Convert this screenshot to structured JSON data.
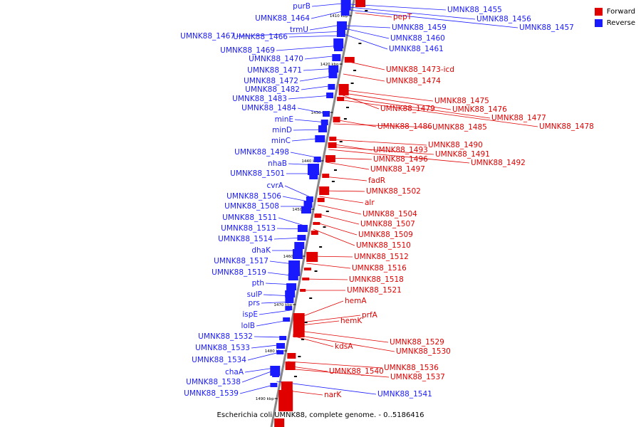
{
  "colors": {
    "forward": "#e00000",
    "reverse": "#1a1aff",
    "axis": "#888888"
  },
  "legend": [
    {
      "label": "Forward",
      "color": "#e00000"
    },
    {
      "label": "Reverse",
      "color": "#1a1aff"
    }
  ],
  "caption": "Escherichia coli UMNK88, complete genome. - 0..5186416",
  "ticks": [
    "1410 kbp",
    "1420 kbp",
    "1430 kbp",
    "1440 kbp",
    "1450 kbp",
    "1460 kbp",
    "1470 kbp",
    "1480 kbp",
    "1490 kbp"
  ],
  "reverse_genes": [
    "purB",
    "UMNK88_1464",
    "trmU",
    "UMNK88_1467",
    "UMNK88_1466",
    "UMNK88_1469",
    "UMNK88_1470",
    "UMNK88_1471",
    "UMNK88_1472",
    "UMNK88_1482",
    "UMNK88_1483",
    "UMNK88_1484",
    "minE",
    "minD",
    "minC",
    "UMNK88_1498",
    "nhaB",
    "UMNK88_1501",
    "cvrA",
    "UMNK88_1506",
    "UMNK88_1508",
    "UMNK88_1511",
    "UMNK88_1513",
    "UMNK88_1514",
    "dhaK",
    "UMNK88_1517",
    "UMNK88_1519",
    "pth",
    "sulP",
    "prs",
    "ispE",
    "lolB",
    "UMNK88_1532",
    "UMNK88_1533",
    "UMNK88_1534",
    "chaA",
    "UMNK88_1538",
    "UMNK88_1539",
    "UMNK88_1455",
    "UMNK88_1456",
    "UMNK88_1457",
    "UMNK88_1459",
    "UMNK88_1460",
    "UMNK88_1461",
    "UMNK88_1541"
  ],
  "forward_genes": [
    "pepT",
    "UMNK88_1473-icd",
    "UMNK88_1474",
    "UMNK88_1475",
    "UMNK88_1476",
    "UMNK88_1479",
    "UMNK88_1477",
    "UMNK88_1478",
    "UMNK88_1486",
    "UMNK88_1485",
    "UMNK88_1490",
    "UMNK88_1493",
    "UMNK88_1491",
    "UMNK88_1492",
    "UMNK88_1496",
    "UMNK88_1497",
    "fadR",
    "UMNK88_1502",
    "alr",
    "UMNK88_1504",
    "UMNK88_1507",
    "UMNK88_1509",
    "UMNK88_1510",
    "UMNK88_1512",
    "UMNK88_1516",
    "UMNK88_1518",
    "UMNK88_1521",
    "hemA",
    "prfA",
    "hemK",
    "UMNK88_1529",
    "UMNK88_1530",
    "kdsA",
    "UMNK88_1536",
    "UMNK88_1540",
    "UMNK88_1537",
    "narK"
  ]
}
